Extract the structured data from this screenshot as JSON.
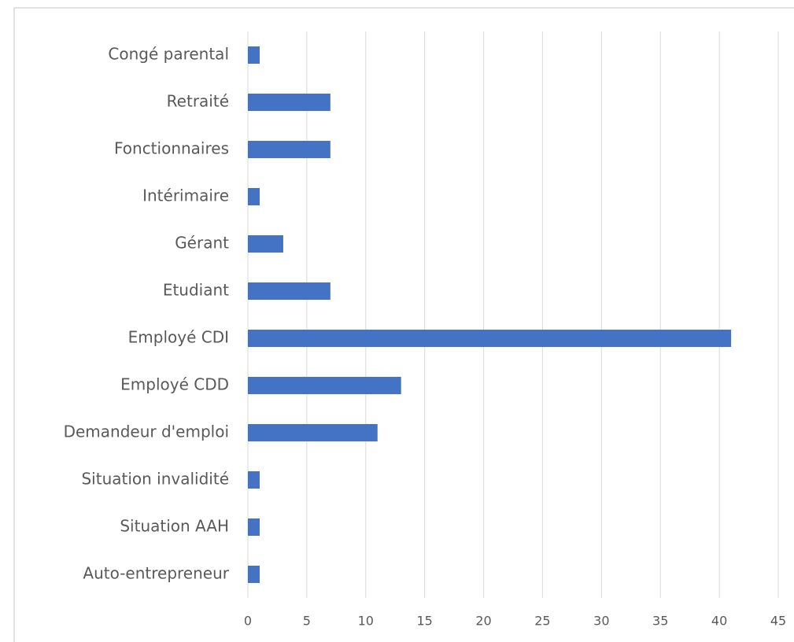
{
  "chart_data": {
    "type": "hbar",
    "categories": [
      "Congé parental",
      "Retraité",
      "Fonctionnaires",
      "Intérimaire",
      "Gérant",
      "Etudiant",
      "Employé CDI",
      "Employé CDD",
      "Demandeur d'emploi",
      "Situation invalidité",
      "Situation AAH",
      "Auto-entrepreneur"
    ],
    "values": [
      1,
      7,
      7,
      1,
      3,
      7,
      41,
      13,
      11,
      1,
      1,
      1
    ],
    "color": "#4472c4",
    "xlim": [
      0,
      45
    ],
    "xticks": [
      0,
      5,
      10,
      15,
      20,
      25,
      30,
      35,
      40,
      45
    ],
    "grid": true
  }
}
